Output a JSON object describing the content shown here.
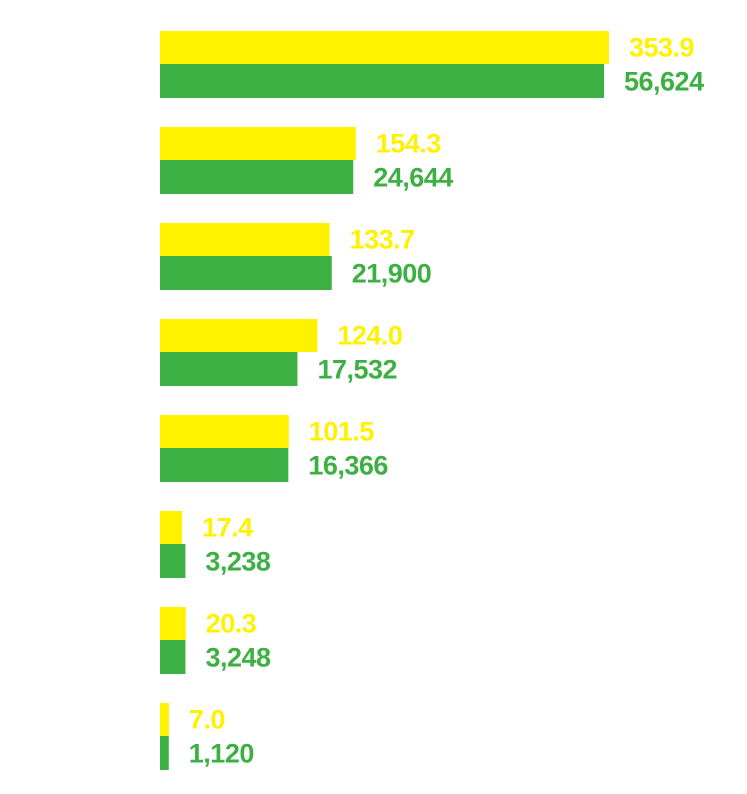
{
  "chart_data": {
    "type": "bar",
    "orientation": "horizontal",
    "title": "",
    "xlabel": "",
    "ylabel": "",
    "grid": false,
    "legend": "none",
    "categories": [
      "",
      "",
      "",
      "",
      "",
      "",
      "",
      ""
    ],
    "series": [
      {
        "name": "",
        "color": "#fff200",
        "values": [
          353.9,
          154.3,
          133.7,
          124.0,
          101.5,
          17.4,
          20.3,
          7.0
        ],
        "labels": [
          "353.9",
          "154.3",
          "133.7",
          "124.0",
          "101.5",
          "17.4",
          "20.3",
          "7.0"
        ]
      },
      {
        "name": "",
        "color": "#3cb043",
        "values": [
          56624,
          24644,
          21900,
          17532,
          16366,
          3238,
          3248,
          1120
        ],
        "labels": [
          "56,624",
          "24,644",
          "21,900",
          "17,532",
          "16,366",
          "3,238",
          "3,248",
          "1,120"
        ]
      }
    ]
  }
}
